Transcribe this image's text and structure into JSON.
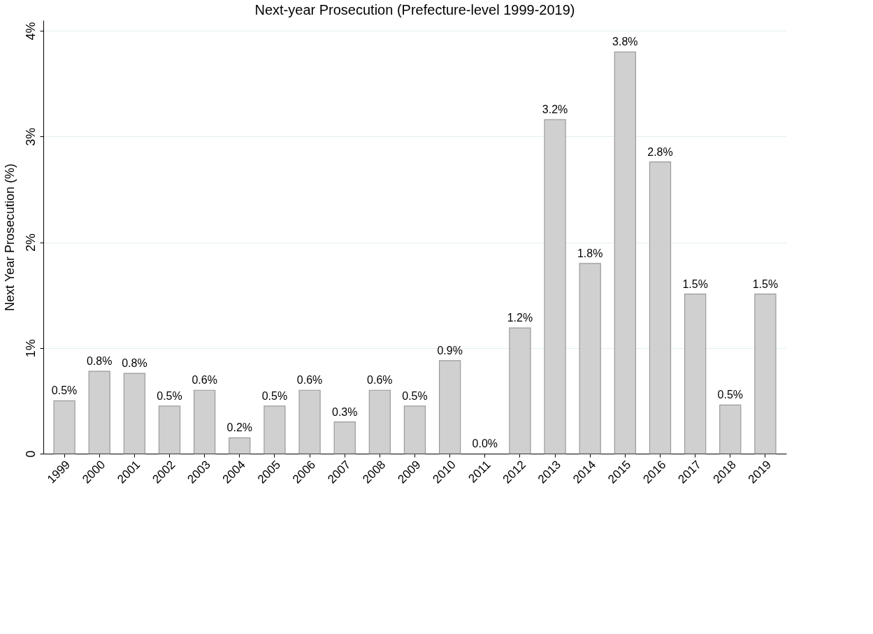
{
  "chart_data": {
    "type": "bar",
    "title": "Next-year Prosecution (Prefecture-level 1999-2019)",
    "ylabel": "Next Year Prosecution (%)",
    "categories": [
      "1999",
      "2000",
      "2001",
      "2002",
      "2003",
      "2004",
      "2005",
      "2006",
      "2007",
      "2008",
      "2009",
      "2010",
      "2011",
      "2012",
      "2013",
      "2014",
      "2015",
      "2016",
      "2017",
      "2018",
      "2019"
    ],
    "values": [
      0.5,
      0.78,
      0.76,
      0.45,
      0.6,
      0.15,
      0.45,
      0.6,
      0.3,
      0.6,
      0.45,
      0.88,
      0,
      1.19,
      3.16,
      1.8,
      3.8,
      2.76,
      1.51,
      0.46,
      1.51
    ],
    "value_labels": [
      "0.5%",
      "0.8%",
      "0.8%",
      "0.5%",
      "0.6%",
      "0.2%",
      "0.5%",
      "0.6%",
      "0.3%",
      "0.6%",
      "0.5%",
      "0.9%",
      "0.0%",
      "1.2%",
      "3.2%",
      "1.8%",
      "3.8%",
      "2.8%",
      "1.5%",
      "0.5%",
      "1.5%"
    ],
    "color": "#d0d0d0",
    "ylim": [
      0,
      4.1
    ],
    "yticks": [
      0,
      {
        "value": 1,
        "label": "1%"
      },
      {
        "value": 2,
        "label": "2%"
      },
      {
        "value": 3,
        "label": "3%"
      },
      {
        "value": 4,
        "label": "4%"
      }
    ],
    "grid": "y"
  }
}
